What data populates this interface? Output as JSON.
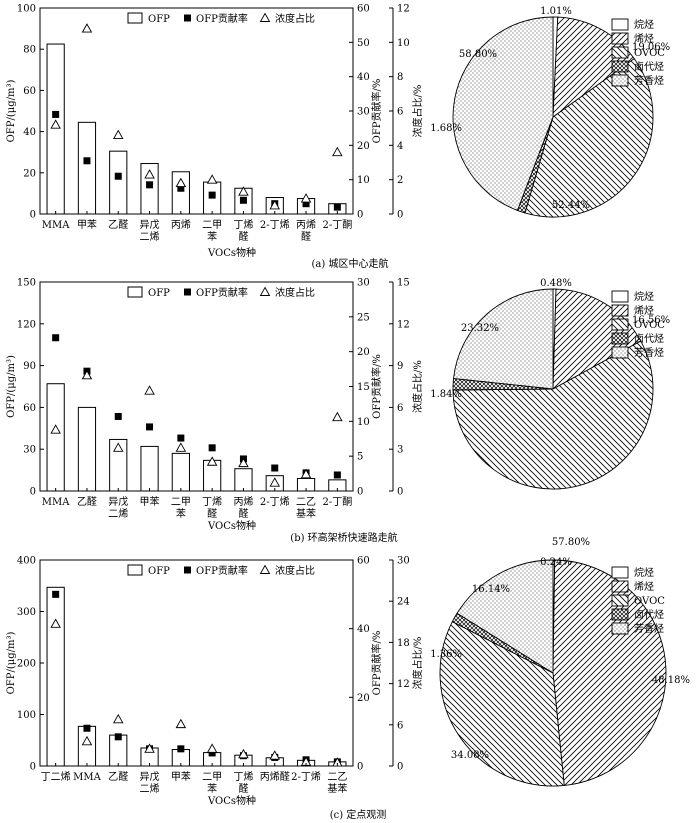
{
  "panel_labels": [
    "(a) 城区中心走航",
    "(b) 环高架桥快速路走航",
    "(c) 定点观测"
  ],
  "bar_legend": {
    "bar": "OFP",
    "rate": "OFP贡献率",
    "conc": "浓度占比"
  },
  "pie_legend": [
    "烷烃",
    "烯烃",
    "OVOC",
    "卤代烃",
    "芳香烃"
  ],
  "chart_data": [
    {
      "type": "bar",
      "panel": "a",
      "title": "",
      "xlabel": "VOCs物种",
      "ylabel": "OFP/(μg/m³)",
      "ylabel_right1": "OFP贡献率/%",
      "ylabel_right2": "浓度占比/%",
      "categories": [
        "MMA",
        "甲苯",
        "乙醛",
        "异戊二烯",
        "丙烯",
        "二甲苯",
        "丁烯醛",
        "2-丁烯",
        "丙烯醛",
        "2-丁酮"
      ],
      "category_lines": [
        [
          "MMA"
        ],
        [
          "甲苯"
        ],
        [
          "乙醛"
        ],
        [
          "异戊",
          "二烯"
        ],
        [
          "丙烯"
        ],
        [
          "二甲",
          "苯"
        ],
        [
          "丁烯",
          "醛"
        ],
        [
          "2-丁烯"
        ],
        [
          "丙烯",
          "醛"
        ],
        [
          "2-丁酮"
        ]
      ],
      "ylim": [
        0,
        100
      ],
      "yticks": [
        0,
        20,
        40,
        60,
        80,
        100
      ],
      "ylim_right1": [
        0,
        60
      ],
      "yticks_right1": [
        0,
        10,
        20,
        30,
        40,
        50,
        60
      ],
      "ylim_right2": [
        0,
        12
      ],
      "yticks_right2": [
        0,
        2,
        4,
        6,
        8,
        10,
        12
      ],
      "series": [
        {
          "name": "OFP",
          "axis": "left",
          "kind": "bar",
          "values": [
            82.5,
            44.5,
            30.5,
            24.5,
            20.5,
            15.5,
            12.5,
            8.0,
            7.5,
            5.0
          ]
        },
        {
          "name": "OFP贡献率",
          "axis": "right1",
          "kind": "square",
          "values": [
            29,
            15.5,
            11,
            8.5,
            7.5,
            5.5,
            4,
            3,
            3,
            2
          ]
        },
        {
          "name": "浓度占比",
          "axis": "right2",
          "kind": "triangle",
          "values": [
            5.2,
            10.8,
            4.6,
            2.3,
            1.8,
            2.0,
            1.3,
            0.5,
            0.9,
            3.6
          ]
        }
      ]
    },
    {
      "type": "pie",
      "panel": "a",
      "labels": [
        "烷烃",
        "烯烃",
        "OVOC",
        "卤代烃",
        "芳香烃"
      ],
      "values": [
        1.01,
        19.06,
        52.44,
        1.68,
        58.8
      ],
      "value_labels": [
        "1.01%",
        "19.06%",
        "52.44%",
        "1.68%",
        "58.80%"
      ]
    },
    {
      "type": "bar",
      "panel": "b",
      "title": "",
      "xlabel": "VOCs物种",
      "ylabel": "OFP/(μg/m³)",
      "ylabel_right1": "OFP贡献率/%",
      "ylabel_right2": "浓度占比/%",
      "categories": [
        "MMA",
        "乙醛",
        "异戊二烯",
        "甲苯",
        "二甲苯",
        "丁烯醛",
        "丙烯醛",
        "2-丁烯",
        "二乙基苯",
        "2-丁酮"
      ],
      "category_lines": [
        [
          "MMA"
        ],
        [
          "乙醛"
        ],
        [
          "异戊",
          "二烯"
        ],
        [
          "甲苯"
        ],
        [
          "二甲",
          "苯"
        ],
        [
          "丁烯",
          "醛"
        ],
        [
          "丙烯",
          "醛"
        ],
        [
          "2-丁烯"
        ],
        [
          "二乙",
          "基苯"
        ],
        [
          "2-丁酮"
        ]
      ],
      "ylim": [
        0,
        150
      ],
      "yticks": [
        0,
        30,
        60,
        90,
        120,
        150
      ],
      "ylim_right1": [
        0,
        30
      ],
      "yticks_right1": [
        0,
        5,
        10,
        15,
        20,
        25,
        30
      ],
      "ylim_right2": [
        0,
        15
      ],
      "yticks_right2": [
        0,
        3,
        6,
        9,
        12,
        15
      ],
      "series": [
        {
          "name": "OFP",
          "axis": "left",
          "kind": "bar",
          "values": [
            77,
            60,
            37,
            32,
            27,
            22,
            16,
            11,
            9,
            8
          ]
        },
        {
          "name": "OFP贡献率",
          "axis": "right1",
          "kind": "square",
          "values": [
            22,
            17.2,
            10.7,
            9.2,
            7.6,
            6.2,
            4.6,
            3.3,
            2.6,
            2.3
          ]
        },
        {
          "name": "浓度占比",
          "axis": "right2",
          "kind": "triangle",
          "values": [
            4.4,
            8.3,
            3.1,
            7.2,
            3.1,
            2.1,
            2.0,
            0.6,
            1.2,
            5.3
          ]
        }
      ]
    },
    {
      "type": "pie",
      "panel": "b",
      "labels": [
        "烷烃",
        "烯烃",
        "OVOC",
        "卤代烃",
        "芳香烃"
      ],
      "values": [
        0.48,
        16.56,
        57.8,
        1.84,
        23.32
      ],
      "value_labels": [
        "0.48%",
        "16.56%",
        "57.80%",
        "1.84%",
        "23.32%"
      ]
    },
    {
      "type": "bar",
      "panel": "c",
      "title": "",
      "xlabel": "VOCs物种",
      "ylabel": "OFP/(μg/m³)",
      "ylabel_right1": "OFP贡献率/%",
      "ylabel_right2": "浓度占比/%",
      "categories": [
        "丁二烯",
        "MMA",
        "乙醛",
        "异戊二烯",
        "甲苯",
        "二甲苯",
        "丁烯醛",
        "丙烯醛",
        "2-丁烯",
        "二乙基苯"
      ],
      "category_lines": [
        [
          "丁二烯"
        ],
        [
          "MMA"
        ],
        [
          "乙醛"
        ],
        [
          "异戊",
          "二烯"
        ],
        [
          "甲苯"
        ],
        [
          "二甲",
          "苯"
        ],
        [
          "丁烯",
          "醛"
        ],
        [
          "丙烯醛"
        ],
        [
          "2-丁烯"
        ],
        [
          "二乙",
          "基苯"
        ]
      ],
      "ylim": [
        0,
        400
      ],
      "yticks": [
        0,
        100,
        200,
        300,
        400
      ],
      "ylim_right1": [
        0,
        60
      ],
      "yticks_right1": [
        0,
        20,
        40,
        60
      ],
      "ylim_right2": [
        0,
        30
      ],
      "yticks_right2": [
        0,
        6,
        12,
        18,
        24,
        30
      ],
      "series": [
        {
          "name": "OFP",
          "axis": "left",
          "kind": "bar",
          "values": [
            347,
            77,
            60,
            35,
            32,
            26,
            21,
            16,
            11,
            8
          ]
        },
        {
          "name": "OFP贡献率",
          "axis": "right1",
          "kind": "square",
          "values": [
            50,
            11,
            8.5,
            5,
            5,
            3.8,
            3,
            2.5,
            1.8,
            1.2
          ]
        },
        {
          "name": "浓度占比",
          "axis": "right2",
          "kind": "triangle",
          "values": [
            20.7,
            3.6,
            6.8,
            2.5,
            6.1,
            2.5,
            1.7,
            1.5,
            0.6,
            0.5
          ]
        }
      ]
    },
    {
      "type": "pie",
      "panel": "c",
      "labels": [
        "烷烃",
        "烯烃",
        "OVOC",
        "卤代烃",
        "芳香烃"
      ],
      "values": [
        0.24,
        48.18,
        34.08,
        1.36,
        16.14
      ],
      "value_labels": [
        "0.24%",
        "48.18%",
        "34.08%",
        "1.36%",
        "16.14%"
      ]
    }
  ]
}
